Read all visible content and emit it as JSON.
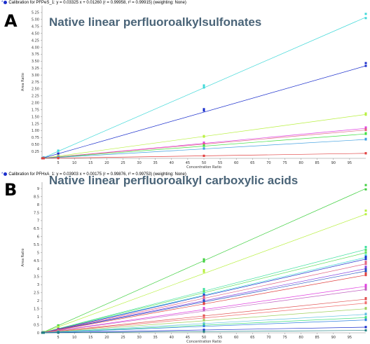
{
  "panels": [
    {
      "letter": "A",
      "heading": "Native linear perfluoroalkylsulfonates",
      "cal_title": "Calibration for PFPeS_1: y = 0.03325 x + 0.01260 (r = 0.99958, r² = 0.99915) (weighting: None)"
    },
    {
      "letter": "B",
      "heading": "Native linear perfluoroalkyl carboxylic acids",
      "cal_title": "Calibration for PFHxA_1: y = 0.03903 x + 0.00175 (r = 0.99876, r² = 0.99753) (weighting: None)"
    }
  ],
  "chart_data": [
    {
      "type": "scatter",
      "xlabel": "Concentration Ratio",
      "ylabel": "Area Ratio",
      "xlim": [
        0,
        100
      ],
      "ylim": [
        0,
        5.5
      ],
      "xticks": [
        5,
        10,
        15,
        20,
        25,
        30,
        35,
        40,
        45,
        50,
        55,
        60,
        65,
        70,
        75,
        80,
        85,
        90,
        95
      ],
      "yticks": [
        0,
        0.25,
        0.5,
        0.75,
        1.0,
        1.25,
        1.5,
        1.75,
        2.0,
        2.25,
        2.5,
        2.75,
        3.0,
        3.25,
        3.5,
        3.75,
        4.0,
        4.25,
        4.5,
        4.75,
        5.0,
        5.25
      ],
      "ytick_labels": [
        "",
        "0.25",
        "0.50",
        "0.75",
        "1.00",
        "1.25",
        "1.50",
        "1.75",
        "2.00",
        "2.25",
        "2.50",
        "2.75",
        "3.00",
        "3.25",
        "3.50",
        "3.75",
        "4.00",
        "4.25",
        "4.50",
        "4.75",
        "5.00",
        "5.25"
      ],
      "grid": false,
      "x_points": [
        0.1,
        0.5,
        5,
        50,
        100
      ],
      "series": [
        {
          "color": "#3fd8d8",
          "slope": 0.0508,
          "y": [
            0.005,
            0.03,
            0.27,
            2.55,
            5.05
          ]
        },
        {
          "color": "#1a2ecc",
          "slope": 0.0333,
          "y": [
            0.005,
            0.02,
            0.17,
            1.72,
            3.33
          ]
        },
        {
          "color": "#b8f040",
          "slope": 0.0158,
          "y": [
            0.002,
            0.01,
            0.09,
            0.78,
            1.57
          ]
        },
        {
          "color": "#e040e0",
          "slope": 0.0108,
          "y": [
            0.002,
            0.01,
            0.06,
            0.55,
            1.08
          ]
        },
        {
          "color": "#e06080",
          "slope": 0.0102,
          "y": [
            0.002,
            0.01,
            0.05,
            0.5,
            1.02
          ]
        },
        {
          "color": "#40e040",
          "slope": 0.0088,
          "y": [
            0.002,
            0.01,
            0.05,
            0.45,
            0.88
          ]
        },
        {
          "color": "#40a0e0",
          "slope": 0.0068,
          "y": [
            0.001,
            0.005,
            0.04,
            0.35,
            0.68
          ]
        },
        {
          "color": "#e04040",
          "slope": 0.0018,
          "y": [
            0.001,
            0.002,
            0.01,
            0.09,
            0.18
          ]
        }
      ]
    },
    {
      "type": "scatter",
      "xlabel": "Concentration Ratio",
      "ylabel": "Area Ratio",
      "xlim": [
        0,
        100
      ],
      "ylim": [
        0,
        9.4
      ],
      "xticks": [
        5,
        10,
        15,
        20,
        25,
        30,
        35,
        40,
        45,
        50,
        55,
        60,
        65,
        70,
        75,
        80,
        85,
        90,
        95
      ],
      "yticks": [
        0,
        0.5,
        1,
        1.5,
        2,
        2.5,
        3,
        3.5,
        4,
        4.5,
        5,
        5.5,
        6,
        6.5,
        7,
        7.5,
        8,
        8.5,
        9
      ],
      "ytick_labels": [
        "0",
        "0.5",
        "1",
        "1.5",
        "2",
        "2.5",
        "3",
        "3.5",
        "4",
        "4.5",
        "5",
        "5.5",
        "6",
        "6.5",
        "7",
        "7.5",
        "8",
        "8.5",
        "9"
      ],
      "grid": false,
      "x_points": [
        0.1,
        0.5,
        5,
        50,
        100
      ],
      "series": [
        {
          "color": "#40d040",
          "slope": 0.09,
          "y": [
            0.01,
            0.05,
            0.45,
            4.45,
            8.95
          ]
        },
        {
          "color": "#b8f040",
          "slope": 0.074,
          "y": [
            0.01,
            0.04,
            0.37,
            3.8,
            7.4
          ]
        },
        {
          "color": "#40e0a0",
          "slope": 0.052,
          "y": [
            0.005,
            0.03,
            0.26,
            2.65,
            5.2
          ]
        },
        {
          "color": "#60e060",
          "slope": 0.05,
          "y": [
            0.005,
            0.03,
            0.25,
            2.5,
            5.0
          ]
        },
        {
          "color": "#3fd8d8",
          "slope": 0.047,
          "y": [
            0.005,
            0.02,
            0.24,
            2.4,
            4.7
          ]
        },
        {
          "color": "#1a2ecc",
          "slope": 0.046,
          "y": [
            0.005,
            0.02,
            0.23,
            2.3,
            4.6
          ]
        },
        {
          "color": "#e06080",
          "slope": 0.043,
          "y": [
            0.004,
            0.02,
            0.22,
            2.2,
            4.3
          ]
        },
        {
          "color": "#8040e0",
          "slope": 0.04,
          "y": [
            0.004,
            0.02,
            0.2,
            2.0,
            4.0
          ]
        },
        {
          "color": "#2050c0",
          "slope": 0.0385,
          "y": [
            0.004,
            0.02,
            0.19,
            1.95,
            3.85
          ]
        },
        {
          "color": "#e04040",
          "slope": 0.036,
          "y": [
            0.004,
            0.02,
            0.18,
            1.8,
            3.6
          ]
        },
        {
          "color": "#e040e0",
          "slope": 0.029,
          "y": [
            0.003,
            0.015,
            0.15,
            1.5,
            2.9
          ]
        },
        {
          "color": "#c060c0",
          "slope": 0.027,
          "y": [
            0.003,
            0.014,
            0.14,
            1.4,
            2.7
          ]
        },
        {
          "color": "#e05050",
          "slope": 0.021,
          "y": [
            0.002,
            0.01,
            0.1,
            1.05,
            2.1
          ]
        },
        {
          "color": "#f07070",
          "slope": 0.0185,
          "y": [
            0.002,
            0.01,
            0.09,
            0.95,
            1.85
          ]
        },
        {
          "color": "#a0d060",
          "slope": 0.015,
          "y": [
            0.002,
            0.008,
            0.08,
            0.78,
            1.5
          ]
        },
        {
          "color": "#60c0e0",
          "slope": 0.0115,
          "y": [
            0.001,
            0.006,
            0.06,
            0.58,
            1.15
          ]
        },
        {
          "color": "#40e080",
          "slope": 0.0095,
          "y": [
            0.001,
            0.005,
            0.05,
            0.5,
            0.95
          ]
        },
        {
          "color": "#3080e0",
          "slope": 0.008,
          "y": [
            0.001,
            0.004,
            0.04,
            0.42,
            0.8
          ]
        },
        {
          "color": "#1a2ecc",
          "slope": 0.0035,
          "y": [
            0.0005,
            0.002,
            0.02,
            0.18,
            0.35
          ]
        },
        {
          "color": "#208080",
          "slope": 0.0015,
          "y": [
            0.0002,
            0.001,
            0.01,
            0.08,
            0.15
          ]
        }
      ]
    }
  ]
}
